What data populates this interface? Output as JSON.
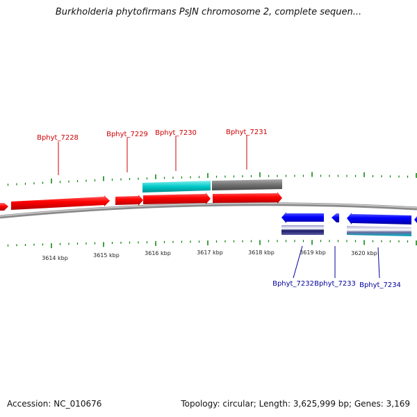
{
  "title": "Burkholderia phytofirmans PsJN chromosome 2, complete sequen...",
  "footer": {
    "accession": "Accession: NC_010676",
    "summary": "Topology: circular; Length: 3,625,999 bp; Genes: 3,169"
  },
  "colors": {
    "forward_cds": "#ff0000",
    "reverse_cds": "#0000ff",
    "forward_label": "#cc0000",
    "reverse_label": "#000099",
    "cyan_track": "#00c8c8",
    "gray_track": "#707070",
    "tick": "#008000",
    "backbone": "#8a8a8a"
  },
  "scale_labels": [
    "3614 kbp",
    "3615 kbp",
    "3616 kbp",
    "3617 kbp",
    "3618 kbp",
    "3619 kbp",
    "3620 kbp"
  ],
  "genes_forward": [
    "Bphyt_7228",
    "Bphyt_7229",
    "Bphyt_7230",
    "Bphyt_7231"
  ],
  "genes_reverse": [
    "Bphyt_7232",
    "Bphyt_7233",
    "Bphyt_7234"
  ]
}
